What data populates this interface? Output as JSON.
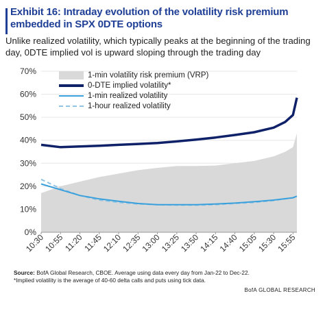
{
  "header": {
    "title": "Exhibit 16: Intraday evolution of the volatility risk premium embedded in SPX 0DTE options",
    "subtitle": "Unlike realized volatility, which typically peaks at the beginning of the trading day, 0DTE implied vol is upward sloping through the trading day"
  },
  "footer": {
    "source_label": "Source:",
    "source_text": " BofA Global Research, CBOE. Average using data every day from Jan-22 to Dec-22.",
    "note": "*Implied volatility is the average of 40-60 delta calls and puts using tick data.",
    "brand": "BofA GLOBAL RESEARCH"
  },
  "colors": {
    "title": "#1f3f97",
    "vrp_fill": "#d9d9d9",
    "implied": "#0f2168",
    "realized_1min": "#3aa0dc",
    "realized_1hour": "#8fc3e2",
    "grid": "#e6e6e6"
  },
  "chart_data": {
    "type": "area",
    "title": "",
    "xlabel": "",
    "ylabel": "",
    "ylim": [
      0,
      70
    ],
    "yticks": [
      "0%",
      "10%",
      "20%",
      "30%",
      "40%",
      "50%",
      "60%",
      "70%"
    ],
    "x_tick_labels": [
      "10:30",
      "10:55",
      "11:20",
      "11:45",
      "12:10",
      "12:35",
      "13:00",
      "13:25",
      "13:50",
      "14:15",
      "14:40",
      "15:05",
      "15:30",
      "15:55"
    ],
    "x_start": "10:30",
    "x_end": "16:00",
    "legend_position": "top-left",
    "grid": true,
    "series": [
      {
        "name": "1-min volatility risk premium (VRP)",
        "style": "area",
        "x": [
          "10:30",
          "10:55",
          "11:20",
          "11:45",
          "12:10",
          "12:35",
          "13:00",
          "13:25",
          "13:50",
          "14:15",
          "14:40",
          "15:05",
          "15:30",
          "15:45",
          "15:55",
          "16:00"
        ],
        "values": [
          17,
          20,
          22,
          24,
          25.5,
          27,
          28,
          28.8,
          28.8,
          29,
          30,
          31,
          33,
          35,
          37,
          43
        ]
      },
      {
        "name": "0-DTE implied volatility*",
        "style": "line",
        "x": [
          "10:30",
          "10:55",
          "11:20",
          "11:45",
          "12:10",
          "12:35",
          "13:00",
          "13:25",
          "13:50",
          "14:15",
          "14:40",
          "15:05",
          "15:30",
          "15:45",
          "15:55",
          "16:00"
        ],
        "values": [
          38,
          37,
          37.3,
          37.6,
          38,
          38.4,
          38.8,
          39.5,
          40.3,
          41.2,
          42.3,
          43.5,
          45.5,
          48,
          51,
          58.5
        ]
      },
      {
        "name": "1-min realized volatility",
        "style": "line",
        "x": [
          "10:30",
          "10:55",
          "11:20",
          "11:45",
          "12:10",
          "12:35",
          "13:00",
          "13:25",
          "13:50",
          "14:15",
          "14:40",
          "15:05",
          "15:30",
          "15:55",
          "16:00"
        ],
        "values": [
          21,
          18.5,
          16,
          14.5,
          13.5,
          12.5,
          12,
          12,
          12,
          12.3,
          12.7,
          13.3,
          14,
          15,
          15.7
        ]
      },
      {
        "name": "1-hour realized volatility",
        "style": "dashed",
        "x": [
          "10:30",
          "10:55",
          "11:20",
          "11:45",
          "12:10",
          "12:35",
          "13:00",
          "13:25",
          "13:50",
          "14:15",
          "14:40",
          "15:05",
          "15:30",
          "15:55",
          "16:00"
        ],
        "values": [
          23,
          19,
          16,
          14,
          13,
          12.3,
          12,
          11.8,
          11.8,
          12,
          12.5,
          13,
          13.8,
          15,
          15.7
        ]
      }
    ]
  }
}
